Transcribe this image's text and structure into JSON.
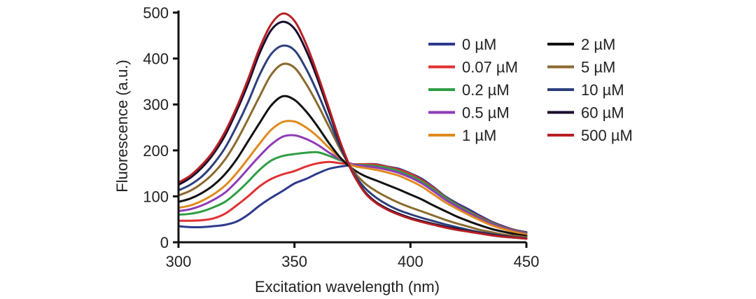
{
  "chart_data": {
    "type": "line",
    "xlabel": "Excitation wavelength (nm)",
    "ylabel": "Fluorescence (a.u.)",
    "xlim": [
      300,
      450
    ],
    "ylim": [
      0,
      500
    ],
    "xticks": [
      300,
      350,
      400,
      450
    ],
    "yticks": [
      0,
      100,
      200,
      300,
      400,
      500
    ],
    "grid": false,
    "legend_position": "top-right",
    "x": [
      300,
      305,
      310,
      315,
      320,
      325,
      330,
      335,
      340,
      345,
      350,
      355,
      360,
      365,
      370,
      375,
      380,
      385,
      390,
      395,
      400,
      405,
      410,
      415,
      420,
      425,
      430,
      435,
      440,
      445,
      450
    ],
    "series": [
      {
        "name": "0 µM",
        "color": "#2d3a8c",
        "values": [
          35,
          33,
          33,
          35,
          38,
          45,
          60,
          80,
          97,
          112,
          128,
          138,
          150,
          160,
          165,
          168,
          170,
          170,
          165,
          160,
          150,
          138,
          120,
          100,
          85,
          72,
          58,
          45,
          35,
          27,
          22
        ]
      },
      {
        "name": "0.07 µM",
        "color": "#e03131",
        "values": [
          47,
          47,
          48,
          52,
          62,
          80,
          100,
          122,
          138,
          148,
          155,
          165,
          172,
          175,
          172,
          170,
          170,
          169,
          164,
          158,
          149,
          135,
          118,
          98,
          82,
          68,
          55,
          43,
          33,
          26,
          20
        ]
      },
      {
        "name": "0.2 µM",
        "color": "#2f9e44",
        "values": [
          60,
          62,
          67,
          76,
          88,
          108,
          132,
          158,
          178,
          188,
          192,
          195,
          196,
          188,
          178,
          170,
          168,
          166,
          162,
          155,
          145,
          132,
          115,
          97,
          81,
          67,
          53,
          42,
          32,
          25,
          19
        ]
      },
      {
        "name": "0.5 µM",
        "color": "#8e3bb8",
        "values": [
          68,
          72,
          80,
          92,
          108,
          132,
          160,
          188,
          213,
          230,
          233,
          225,
          212,
          195,
          180,
          170,
          166,
          163,
          158,
          151,
          141,
          128,
          111,
          93,
          78,
          64,
          51,
          40,
          31,
          24,
          18
        ]
      },
      {
        "name": "1 µM",
        "color": "#e08a1e",
        "values": [
          75,
          80,
          90,
          104,
          123,
          150,
          182,
          215,
          245,
          262,
          263,
          250,
          230,
          205,
          182,
          167,
          162,
          158,
          152,
          145,
          134,
          121,
          104,
          87,
          73,
          60,
          48,
          37,
          29,
          22,
          17
        ]
      },
      {
        "name": "2 µM",
        "color": "#111111",
        "values": [
          88,
          95,
          107,
          124,
          148,
          180,
          220,
          260,
          298,
          318,
          310,
          285,
          252,
          215,
          183,
          160,
          145,
          135,
          125,
          115,
          104,
          93,
          80,
          68,
          56,
          46,
          37,
          29,
          23,
          18,
          14
        ]
      },
      {
        "name": "5 µM",
        "color": "#8a6a2e",
        "values": [
          102,
          112,
          128,
          150,
          180,
          220,
          268,
          318,
          365,
          388,
          380,
          345,
          300,
          250,
          200,
          158,
          130,
          112,
          98,
          86,
          76,
          67,
          58,
          49,
          41,
          34,
          27,
          22,
          17,
          14,
          11
        ]
      },
      {
        "name": "10 µM",
        "color": "#2c3f7a",
        "values": [
          113,
          125,
          143,
          170,
          205,
          252,
          305,
          365,
          410,
          428,
          418,
          378,
          325,
          265,
          205,
          155,
          120,
          98,
          82,
          70,
          61,
          53,
          46,
          39,
          33,
          27,
          22,
          18,
          14,
          11,
          9
        ]
      },
      {
        "name": "60 µM",
        "color": "#1a0a2e",
        "values": [
          125,
          140,
          162,
          192,
          232,
          285,
          345,
          412,
          462,
          480,
          465,
          418,
          355,
          283,
          212,
          152,
          112,
          88,
          73,
          62,
          53,
          46,
          40,
          34,
          29,
          24,
          20,
          16,
          13,
          10,
          8
        ]
      },
      {
        "name": "500 µM",
        "color": "#b52025",
        "values": [
          130,
          145,
          168,
          198,
          240,
          293,
          355,
          423,
          475,
          498,
          482,
          432,
          365,
          290,
          215,
          153,
          110,
          86,
          71,
          60,
          51,
          44,
          38,
          32,
          27,
          23,
          19,
          15,
          12,
          10,
          8
        ]
      }
    ]
  }
}
